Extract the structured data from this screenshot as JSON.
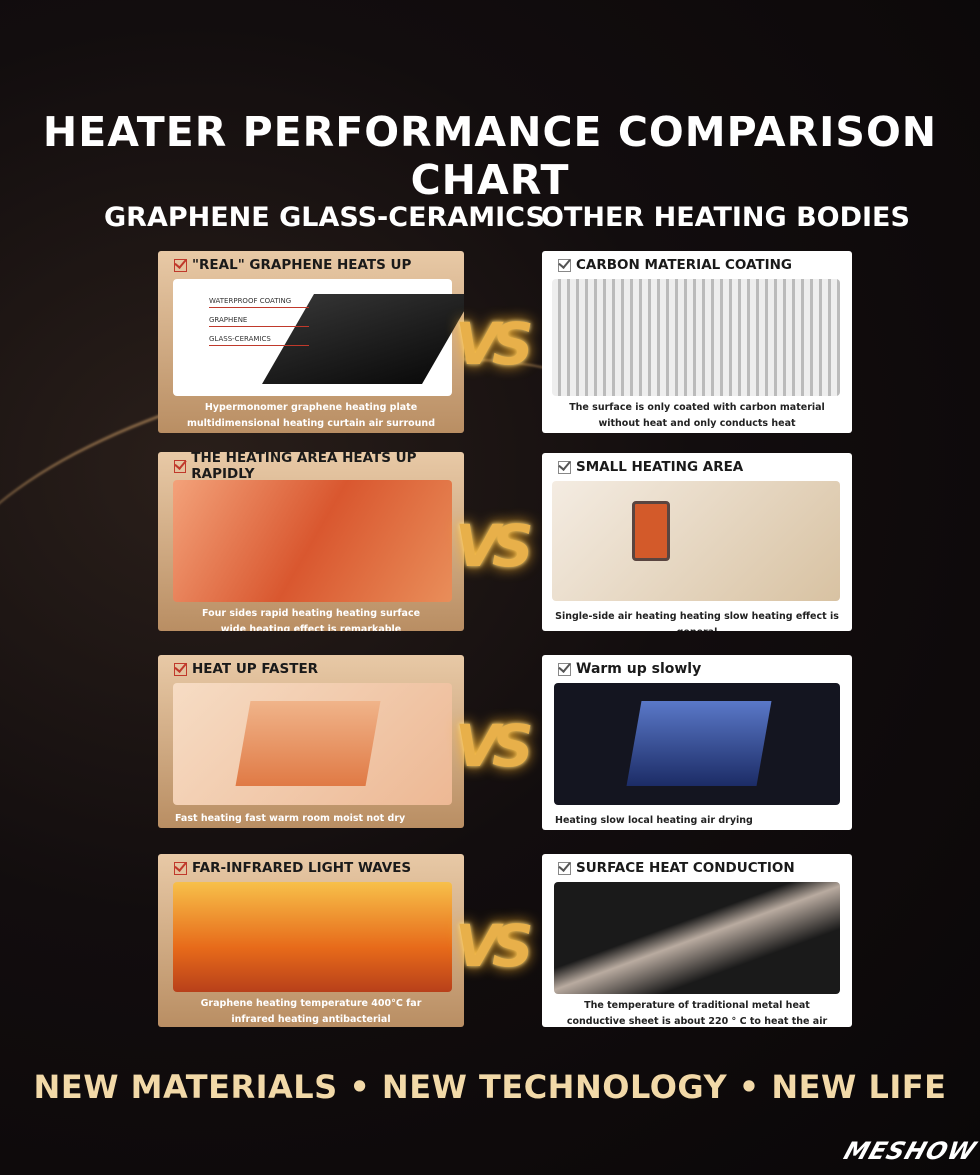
{
  "title": "HEATER PERFORMANCE COMPARISON CHART",
  "left_heading": "GRAPHENE GLASS-CERAMICS",
  "right_heading": "OTHER HEATING BODIES",
  "vs": "VS",
  "rows": [
    {
      "left": {
        "title": "\"REAL\" GRAPHENE HEATS UP",
        "caption": [
          "Hypermonomer graphene heating plate",
          "multidimensional heating curtain air surround"
        ],
        "layers": [
          "WATERPROOF COATING",
          "GRAPHENE",
          "GLASS-CERAMICS"
        ]
      },
      "right": {
        "title": "CARBON MATERIAL COATING",
        "caption": [
          "The surface is only coated with carbon material",
          "without heat and only conducts heat"
        ]
      }
    },
    {
      "left": {
        "title": "THE HEATING AREA HEATS UP RAPIDLY",
        "caption": [
          "Four sides rapid heating heating surface",
          "wide heating effect is remarkable"
        ]
      },
      "right": {
        "title": "SMALL HEATING AREA",
        "caption": [
          "Single-side air heating heating slow heating effect is general"
        ]
      }
    },
    {
      "left": {
        "title": "HEAT UP FASTER",
        "caption": [
          "Fast heating fast warm room moist not dry"
        ]
      },
      "right": {
        "title": "Warm up slowly",
        "caption": [
          "Heating slow local heating air drying"
        ]
      }
    },
    {
      "left": {
        "title": "FAR-INFRARED LIGHT WAVES",
        "caption": [
          "Graphene heating temperature 400°C far",
          "infrared heating antibacterial"
        ]
      },
      "right": {
        "title": "SURFACE HEAT CONDUCTION",
        "caption": [
          "The temperature of traditional metal heat",
          "conductive sheet is about 220 ° C to heat the air"
        ]
      }
    }
  ],
  "footer": "NEW MATERIALS •  NEW TECHNOLOGY • NEW LIFE",
  "logo": "MESHOW"
}
